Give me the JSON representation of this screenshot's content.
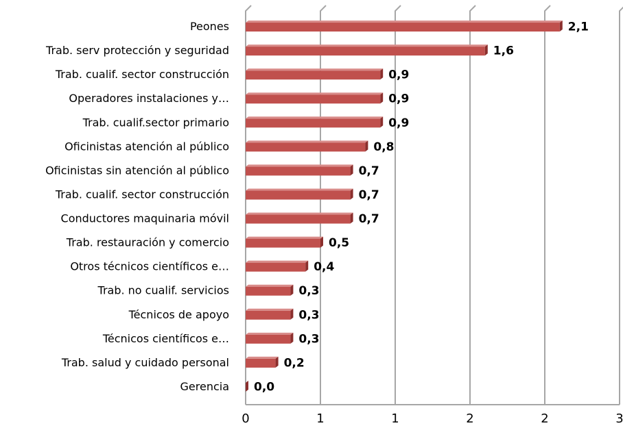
{
  "chart_data": {
    "type": "bar",
    "orientation": "horizontal",
    "categories": [
      "Peones",
      "Trab. serv protección y seguridad",
      "Trab. cualif. sector construcción",
      "Operadores instalaciones y…",
      "Trab. cualif.sector primario",
      "Oficinistas atención al público",
      "Oficinistas sin atención al público",
      "Trab. cualif. sector construcción",
      "Conductores maquinaria móvil",
      "Trab. restauración y comercio",
      "Otros técnicos científicos e…",
      "Trab. no cualif. servicios",
      "Técnicos de apoyo",
      "Técnicos científicos e…",
      "Trab. salud y cuidado personal",
      "Gerencia"
    ],
    "values": [
      2.1,
      1.6,
      0.9,
      0.9,
      0.9,
      0.8,
      0.7,
      0.7,
      0.7,
      0.5,
      0.4,
      0.3,
      0.3,
      0.3,
      0.2,
      0.0
    ],
    "value_labels": [
      "2,1",
      "1,6",
      "0,9",
      "0,9",
      "0,9",
      "0,8",
      "0,7",
      "0,7",
      "0,7",
      "0,5",
      "0,4",
      "0,3",
      "0,3",
      "0,3",
      "0,2",
      "0,0"
    ],
    "color": "#c0504d",
    "xlim": [
      0,
      2.5
    ],
    "xticks": [
      0,
      {
        "value": 0.5,
        "label": "1"
      },
      1,
      {
        "value": 1.5,
        "label": "2"
      },
      2,
      {
        "value": 2.5,
        "label": "3"
      }
    ],
    "grid": true
  }
}
